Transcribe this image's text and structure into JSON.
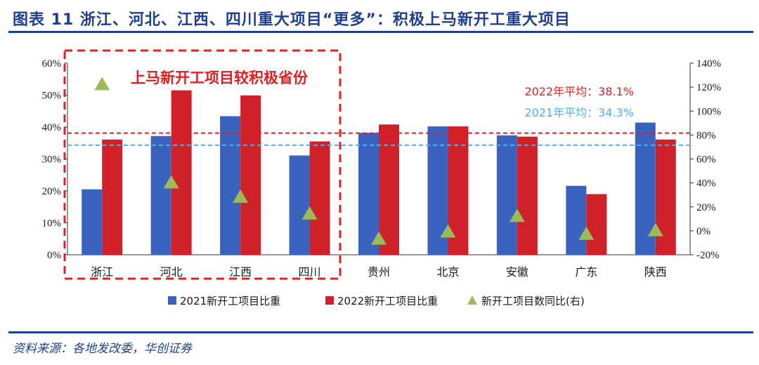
{
  "figure": {
    "title": "图表 11   浙江、河北、江西、四川重大项目“更多”：积极上马新开工重大项目",
    "source": "资料来源：各地发改委，华创证券"
  },
  "colors": {
    "series_2021": "#3a63c0",
    "series_2022": "#d0212b",
    "series_growth": "#9bbb59",
    "avg_2022": "#e02020",
    "avg_2021": "#4fb0e8",
    "title_blue": "#1f3f8f"
  },
  "chart_data": {
    "type": "bar",
    "title": "",
    "categories": [
      "浙江",
      "河北",
      "江西",
      "四川",
      "贵州",
      "北京",
      "安徽",
      "广东",
      "陕西"
    ],
    "series": [
      {
        "name": "2021新开工项目比重",
        "type": "bar",
        "axis": "left",
        "values": [
          0.205,
          0.372,
          0.434,
          0.311,
          0.382,
          0.402,
          0.374,
          0.216,
          0.414
        ]
      },
      {
        "name": "2022新开工项目比重",
        "type": "bar",
        "axis": "left",
        "values": [
          0.361,
          0.515,
          0.499,
          0.355,
          0.408,
          0.402,
          0.37,
          0.19,
          0.361
        ]
      },
      {
        "name": "新开工项目数同比(右)",
        "type": "scatter",
        "marker": "triangle",
        "axis": "right",
        "values": [
          1.23,
          0.41,
          0.29,
          0.15,
          -0.06,
          0.0,
          0.13,
          -0.02,
          0.01
        ]
      }
    ],
    "y_left": {
      "min": 0,
      "max": 0.6,
      "ticks": [
        "0%",
        "10%",
        "20%",
        "30%",
        "40%",
        "50%",
        "60%"
      ]
    },
    "y_right": {
      "min": -0.2,
      "max": 1.4,
      "ticks": [
        "-20%",
        "0%",
        "20%",
        "40%",
        "60%",
        "80%",
        "100%",
        "120%",
        "140%"
      ]
    },
    "reference_lines": [
      {
        "label": "2022年平均：38.1%",
        "value": 0.381,
        "axis": "left",
        "style": "dashed-red"
      },
      {
        "label": "2021年平均：34.3%",
        "value": 0.343,
        "axis": "left",
        "style": "dashed-blue"
      }
    ],
    "highlight_box": {
      "label": "上马新开工项目较积极省份",
      "categories": [
        "浙江",
        "河北",
        "江西",
        "四川"
      ]
    },
    "legend_position": "bottom"
  }
}
